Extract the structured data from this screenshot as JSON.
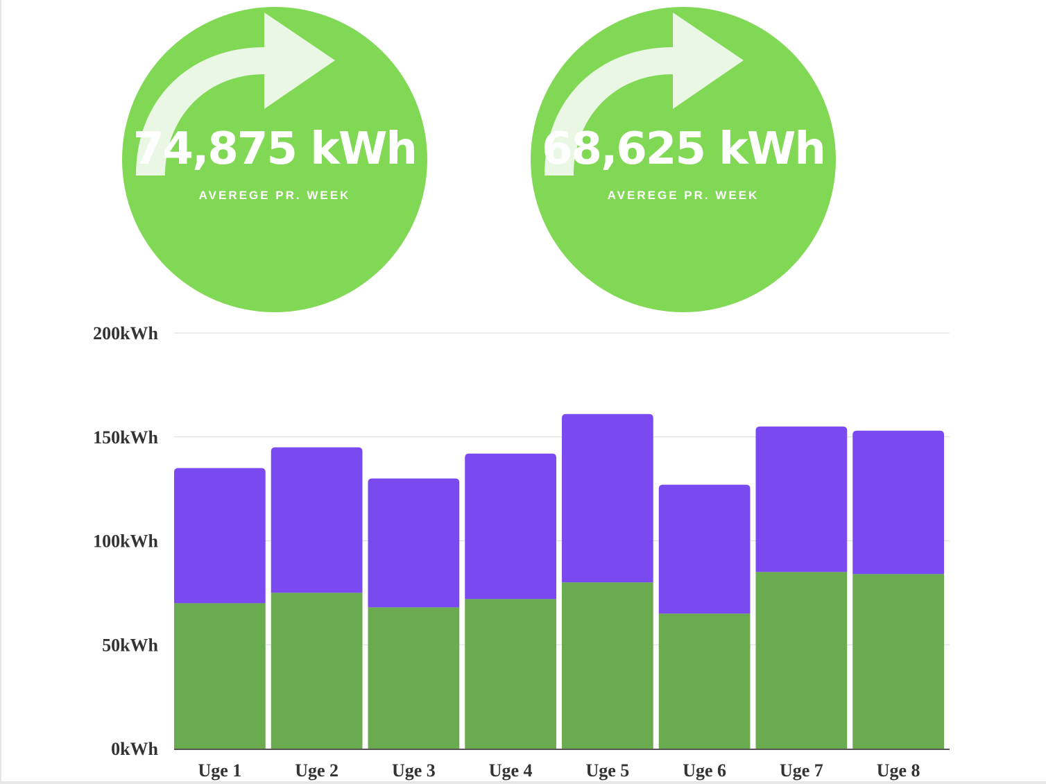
{
  "stats": [
    {
      "value": "74,875 kWh",
      "caption": "AVEREGE PR. WEEK"
    },
    {
      "value": "68,625 kWh",
      "caption": "AVEREGE PR. WEEK"
    }
  ],
  "colors": {
    "circle": "#80d855",
    "arrow": "#eaf7e4",
    "bottom_series": "#6aab4f",
    "top_series": "#7a4af0",
    "grid": "#d9d9d9",
    "text": "#333333"
  },
  "chart_data": {
    "type": "bar",
    "stacked": true,
    "categories": [
      "Uge 1",
      "Uge 2",
      "Uge 3",
      "Uge 4",
      "Uge 5",
      "Uge 6",
      "Uge 7",
      "Uge 8"
    ],
    "series": [
      {
        "values": [
          70,
          75,
          68,
          72,
          80,
          65,
          85,
          84
        ]
      },
      {
        "values": [
          65,
          70,
          62,
          70,
          81,
          62,
          70,
          69
        ]
      }
    ],
    "ylim": [
      0,
      200
    ],
    "yticks": [
      0,
      50,
      100,
      150,
      200
    ],
    "ytick_labels": [
      "0kWh",
      "50kWh",
      "100kWh",
      "150kWh",
      "200kWh"
    ],
    "grid": true,
    "xlabel": "",
    "ylabel": "",
    "title": ""
  }
}
